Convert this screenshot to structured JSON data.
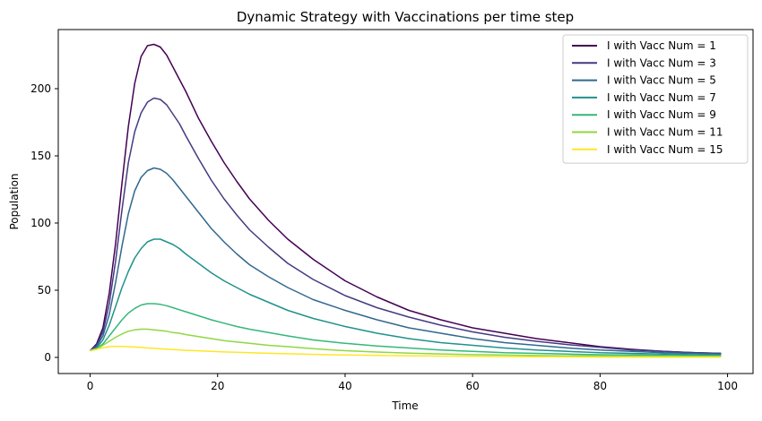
{
  "chart_data": {
    "type": "line",
    "title": "Dynamic Strategy with Vaccinations per time step",
    "xlabel": "Time",
    "ylabel": "Population",
    "xlim": [
      -5,
      104
    ],
    "ylim": [
      -12,
      244
    ],
    "xticks": [
      0,
      20,
      40,
      60,
      80,
      100
    ],
    "yticks": [
      0,
      50,
      100,
      150,
      200
    ],
    "grid": false,
    "legend_position": "top-right",
    "series": [
      {
        "name": "I with Vacc Num = 1",
        "color": "#440154",
        "x": [
          0,
          1,
          2,
          3,
          4,
          5,
          6,
          7,
          8,
          9,
          10,
          11,
          12,
          13,
          14,
          15,
          17,
          19,
          21,
          23,
          25,
          28,
          31,
          35,
          40,
          45,
          50,
          55,
          60,
          65,
          70,
          75,
          80,
          85,
          90,
          95,
          99
        ],
        "y": [
          5,
          10,
          22,
          48,
          85,
          130,
          172,
          204,
          224,
          232,
          233,
          231,
          225,
          216,
          207,
          198,
          178,
          161,
          145,
          131,
          118,
          102,
          88,
          73,
          57,
          45,
          35,
          28,
          22,
          18,
          14,
          11,
          8,
          6,
          4.5,
          3.5,
          3
        ]
      },
      {
        "name": "I with Vacc Num = 3",
        "color": "#443a83",
        "x": [
          0,
          1,
          2,
          3,
          4,
          5,
          6,
          7,
          8,
          9,
          10,
          11,
          12,
          13,
          14,
          15,
          17,
          19,
          21,
          23,
          25,
          28,
          31,
          35,
          40,
          45,
          50,
          55,
          60,
          65,
          70,
          75,
          80,
          85,
          90,
          95,
          99
        ],
        "y": [
          5,
          9,
          19,
          40,
          72,
          110,
          145,
          168,
          182,
          190,
          193,
          192,
          188,
          181,
          174,
          165,
          148,
          132,
          118,
          106,
          95,
          82,
          70,
          58,
          46,
          37,
          30,
          24,
          19,
          15,
          12,
          9.5,
          7.5,
          5.5,
          4.5,
          3.5,
          3
        ]
      },
      {
        "name": "I with Vacc Num = 5",
        "color": "#31688e",
        "x": [
          0,
          1,
          2,
          3,
          4,
          5,
          6,
          7,
          8,
          9,
          10,
          11,
          12,
          13,
          14,
          15,
          17,
          19,
          21,
          23,
          25,
          28,
          31,
          35,
          40,
          45,
          50,
          55,
          60,
          65,
          70,
          75,
          80,
          85,
          90,
          95,
          99
        ],
        "y": [
          5,
          8,
          16,
          32,
          56,
          83,
          107,
          124,
          134,
          139,
          141,
          140,
          137,
          132,
          126,
          120,
          108,
          96,
          86,
          77,
          69,
          60,
          52,
          43,
          35,
          28,
          22,
          18,
          14,
          11,
          9,
          7,
          5.5,
          4.5,
          3.5,
          3,
          2.5
        ]
      },
      {
        "name": "I with Vacc Num = 7",
        "color": "#21918c",
        "x": [
          0,
          1,
          2,
          3,
          4,
          5,
          6,
          7,
          8,
          9,
          10,
          11,
          12,
          13,
          14,
          15,
          17,
          19,
          21,
          23,
          25,
          28,
          31,
          35,
          40,
          45,
          50,
          55,
          60,
          65,
          70,
          75,
          80,
          85,
          90,
          95,
          99
        ],
        "y": [
          5,
          7,
          13,
          24,
          38,
          52,
          64,
          74,
          81,
          86,
          88,
          88,
          86,
          84,
          81,
          77,
          70,
          63,
          57,
          52,
          47,
          41,
          35,
          29,
          23,
          18,
          14,
          11,
          9,
          7,
          5.5,
          4.5,
          3.5,
          3,
          2.5,
          2,
          2
        ]
      },
      {
        "name": "I with Vacc Num = 9",
        "color": "#35b779",
        "x": [
          0,
          1,
          2,
          3,
          4,
          5,
          6,
          7,
          8,
          9,
          10,
          11,
          12,
          13,
          14,
          15,
          17,
          19,
          21,
          23,
          25,
          28,
          31,
          35,
          40,
          45,
          50,
          55,
          60,
          65,
          70,
          75,
          80,
          85,
          90,
          95,
          99
        ],
        "y": [
          5,
          6.5,
          10,
          16,
          22,
          28,
          33,
          36.5,
          39,
          40,
          40,
          39.5,
          38.5,
          37,
          35.5,
          34,
          31,
          28,
          25.5,
          23,
          21,
          18.5,
          16,
          13,
          10.5,
          8.5,
          7,
          5.5,
          4.5,
          3.5,
          3,
          2.5,
          2,
          1.8,
          1.5,
          1.3,
          1.2
        ]
      },
      {
        "name": "I with Vacc Num = 11",
        "color": "#90d743",
        "x": [
          0,
          1,
          2,
          3,
          4,
          5,
          6,
          7,
          8,
          9,
          10,
          11,
          12,
          13,
          14,
          15,
          17,
          19,
          21,
          23,
          25,
          28,
          31,
          35,
          40,
          45,
          50,
          55,
          60,
          65,
          70,
          75,
          80,
          85,
          90,
          95,
          99
        ],
        "y": [
          5,
          6,
          9,
          12,
          15,
          17.5,
          19.5,
          20.5,
          21,
          21,
          20.5,
          20,
          19.5,
          18.5,
          18,
          17,
          15.5,
          14,
          12.5,
          11.5,
          10.5,
          9,
          8,
          6.5,
          5,
          4,
          3.2,
          2.6,
          2.1,
          1.7,
          1.4,
          1.2,
          1,
          0.9,
          0.8,
          0.7,
          0.7
        ]
      },
      {
        "name": "I with Vacc Num = 15",
        "color": "#fde725",
        "x": [
          0,
          1,
          2,
          3,
          4,
          5,
          6,
          7,
          8,
          9,
          10,
          11,
          12,
          13,
          14,
          15,
          17,
          19,
          21,
          23,
          25,
          28,
          31,
          35,
          40,
          45,
          50,
          55,
          60,
          65,
          70,
          75,
          80,
          85,
          90,
          95,
          99
        ],
        "y": [
          5,
          6,
          7.2,
          8,
          8.3,
          8.2,
          8,
          7.7,
          7.4,
          7,
          6.7,
          6.4,
          6.1,
          5.8,
          5.6,
          5.3,
          4.9,
          4.5,
          4.1,
          3.8,
          3.5,
          3.1,
          2.7,
          2.3,
          1.8,
          1.5,
          1.2,
          1,
          0.8,
          0.6,
          0.5,
          0.4,
          0.3,
          0.25,
          0.2,
          0.2,
          0.2
        ]
      }
    ]
  }
}
